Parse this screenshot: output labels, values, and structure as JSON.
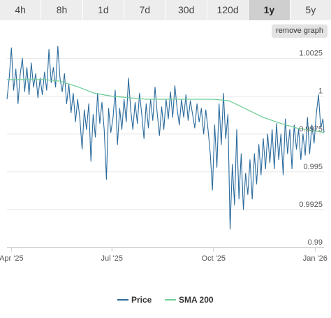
{
  "tabs": [
    {
      "label": "4h",
      "active": false
    },
    {
      "label": "8h",
      "active": false
    },
    {
      "label": "1d",
      "active": false
    },
    {
      "label": "7d",
      "active": false
    },
    {
      "label": "30d",
      "active": false
    },
    {
      "label": "120d",
      "active": false
    },
    {
      "label": "1y",
      "active": true
    },
    {
      "label": "5y",
      "active": false
    }
  ],
  "remove_graph_label": "remove graph",
  "colors": {
    "price": "#2a6a9c",
    "sma": "#6fcf97",
    "grid": "#e6e6e6",
    "axis": "#cccccc"
  },
  "chart_data": {
    "type": "line",
    "title": "",
    "xlabel": "",
    "ylabel": "",
    "xlim": [
      "2025-03-28",
      "2026-01-09"
    ],
    "ylim": [
      0.99,
      1.0035
    ],
    "y_ticks": [
      {
        "value": 1.0025,
        "label": "1.0025"
      },
      {
        "value": 1.0,
        "label": "1"
      },
      {
        "value": 0.9975,
        "label": "0.9975"
      },
      {
        "value": 0.995,
        "label": "0.995"
      },
      {
        "value": 0.9925,
        "label": "0.9925"
      },
      {
        "value": 0.99,
        "label": "0.99"
      }
    ],
    "x_ticks": [
      {
        "date": "2025-04-01",
        "label": "Apr '25"
      },
      {
        "date": "2025-07-01",
        "label": "Jul '25"
      },
      {
        "date": "2025-10-01",
        "label": "Oct '25"
      },
      {
        "date": "2026-01-01",
        "label": "Jan '26"
      }
    ],
    "grid": true,
    "legend_position": "bottom",
    "series": [
      {
        "name": "Price",
        "color": "#2a6a9c",
        "points": [
          [
            "2025-03-28",
            0.9998
          ],
          [
            "2025-03-30",
            1.0012
          ],
          [
            "2025-04-01",
            1.0032
          ],
          [
            "2025-04-03",
            1.0004
          ],
          [
            "2025-04-05",
            1.0018
          ],
          [
            "2025-04-07",
            0.9995
          ],
          [
            "2025-04-09",
            1.0015
          ],
          [
            "2025-04-11",
            1.0025
          ],
          [
            "2025-04-13",
            1.0003
          ],
          [
            "2025-04-15",
            1.0019
          ],
          [
            "2025-04-17",
            1.0001
          ],
          [
            "2025-04-19",
            1.0022
          ],
          [
            "2025-04-21",
            1.0006
          ],
          [
            "2025-04-23",
            1.0015
          ],
          [
            "2025-04-25",
            0.9999
          ],
          [
            "2025-04-27",
            1.0012
          ],
          [
            "2025-04-29",
            1.0001
          ],
          [
            "2025-05-01",
            1.0016
          ],
          [
            "2025-05-03",
            1.0004
          ],
          [
            "2025-05-05",
            1.0031
          ],
          [
            "2025-05-07",
            1.0009
          ],
          [
            "2025-05-09",
            1.0019
          ],
          [
            "2025-05-11",
            1.0006
          ],
          [
            "2025-05-13",
            1.0033
          ],
          [
            "2025-05-15",
            1.0012
          ],
          [
            "2025-05-17",
            1.0003
          ],
          [
            "2025-05-19",
            1.0015
          ],
          [
            "2025-05-21",
            0.9995
          ],
          [
            "2025-05-23",
            1.0008
          ],
          [
            "2025-05-25",
            0.9989
          ],
          [
            "2025-05-27",
            1.0002
          ],
          [
            "2025-05-29",
            0.9983
          ],
          [
            "2025-05-31",
            0.9998
          ],
          [
            "2025-06-02",
            0.9985
          ],
          [
            "2025-06-04",
            0.9965
          ],
          [
            "2025-06-06",
            0.9991
          ],
          [
            "2025-06-08",
            0.9978
          ],
          [
            "2025-06-10",
            0.9995
          ],
          [
            "2025-06-12",
            0.9957
          ],
          [
            "2025-06-14",
            0.9988
          ],
          [
            "2025-06-16",
            0.9973
          ],
          [
            "2025-06-18",
            1.0002
          ],
          [
            "2025-06-20",
            0.9982
          ],
          [
            "2025-06-22",
            0.9996
          ],
          [
            "2025-06-24",
            0.9978
          ],
          [
            "2025-06-26",
            0.9945
          ],
          [
            "2025-06-28",
            0.9992
          ],
          [
            "2025-06-30",
            0.9976
          ],
          [
            "2025-07-02",
            0.9986
          ],
          [
            "2025-07-04",
            1.0004
          ],
          [
            "2025-07-06",
            0.9968
          ],
          [
            "2025-07-08",
            0.9992
          ],
          [
            "2025-07-10",
            0.9978
          ],
          [
            "2025-07-12",
            0.9998
          ],
          [
            "2025-07-14",
            0.9983
          ],
          [
            "2025-07-16",
            1.0012
          ],
          [
            "2025-07-18",
            0.9991
          ],
          [
            "2025-07-20",
            0.9978
          ],
          [
            "2025-07-22",
            0.9996
          ],
          [
            "2025-07-24",
            0.9982
          ],
          [
            "2025-07-26",
            1.0002
          ],
          [
            "2025-07-28",
            0.9988
          ],
          [
            "2025-07-30",
            0.9972
          ],
          [
            "2025-08-01",
            0.9995
          ],
          [
            "2025-08-03",
            0.9979
          ],
          [
            "2025-08-05",
            0.9998
          ],
          [
            "2025-08-07",
            0.9984
          ],
          [
            "2025-08-09",
            1.0006
          ],
          [
            "2025-08-11",
            0.9989
          ],
          [
            "2025-08-13",
            0.9974
          ],
          [
            "2025-08-15",
            0.9993
          ],
          [
            "2025-08-17",
            0.9978
          ],
          [
            "2025-08-19",
            0.9998
          ],
          [
            "2025-08-21",
            0.9985
          ],
          [
            "2025-08-23",
            1.0003
          ],
          [
            "2025-08-25",
            0.9986
          ],
          [
            "2025-08-27",
            1.0007
          ],
          [
            "2025-08-29",
            0.9992
          ],
          [
            "2025-08-31",
            0.9981
          ],
          [
            "2025-09-02",
            0.9998
          ],
          [
            "2025-09-04",
            0.9986
          ],
          [
            "2025-09-06",
            1.0001
          ],
          [
            "2025-09-08",
            0.9984
          ],
          [
            "2025-09-10",
            0.9997
          ],
          [
            "2025-09-12",
            0.9988
          ],
          [
            "2025-09-14",
            0.9979
          ],
          [
            "2025-09-16",
            0.9995
          ],
          [
            "2025-09-18",
            0.9983
          ],
          [
            "2025-09-20",
            0.9992
          ],
          [
            "2025-09-22",
            0.9975
          ],
          [
            "2025-09-24",
            0.9991
          ],
          [
            "2025-09-26",
            0.9978
          ],
          [
            "2025-09-28",
            0.9962
          ],
          [
            "2025-09-30",
            0.9938
          ],
          [
            "2025-10-02",
            0.9981
          ],
          [
            "2025-10-04",
            0.9953
          ],
          [
            "2025-10-06",
            0.9995
          ],
          [
            "2025-10-08",
            0.9968
          ],
          [
            "2025-10-10",
            1.0002
          ],
          [
            "2025-10-12",
            0.9972
          ],
          [
            "2025-10-14",
            0.9988
          ],
          [
            "2025-10-16",
            0.9912
          ],
          [
            "2025-10-18",
            0.9955
          ],
          [
            "2025-10-20",
            0.9928
          ],
          [
            "2025-10-22",
            0.9978
          ],
          [
            "2025-10-24",
            0.9932
          ],
          [
            "2025-10-26",
            0.9962
          ],
          [
            "2025-10-28",
            0.9925
          ],
          [
            "2025-10-30",
            0.9949
          ],
          [
            "2025-11-01",
            0.9935
          ],
          [
            "2025-11-03",
            0.9958
          ],
          [
            "2025-11-05",
            0.9932
          ],
          [
            "2025-11-07",
            0.9962
          ],
          [
            "2025-11-09",
            0.9942
          ],
          [
            "2025-11-11",
            0.9968
          ],
          [
            "2025-11-13",
            0.9948
          ],
          [
            "2025-11-15",
            0.9972
          ],
          [
            "2025-11-17",
            0.9952
          ],
          [
            "2025-11-19",
            0.9975
          ],
          [
            "2025-11-21",
            0.9956
          ],
          [
            "2025-11-23",
            0.9978
          ],
          [
            "2025-11-25",
            0.9952
          ],
          [
            "2025-11-27",
            0.9982
          ],
          [
            "2025-11-29",
            0.9958
          ],
          [
            "2025-12-01",
            0.9975
          ],
          [
            "2025-12-03",
            0.9948
          ],
          [
            "2025-12-05",
            0.9985
          ],
          [
            "2025-12-07",
            0.9962
          ],
          [
            "2025-12-09",
            0.9978
          ],
          [
            "2025-12-11",
            0.9952
          ],
          [
            "2025-12-13",
            0.9981
          ],
          [
            "2025-12-15",
            0.9965
          ],
          [
            "2025-12-17",
            0.9978
          ],
          [
            "2025-12-19",
            0.9958
          ],
          [
            "2025-12-21",
            0.9975
          ],
          [
            "2025-12-23",
            0.9961
          ],
          [
            "2025-12-25",
            0.9986
          ],
          [
            "2025-12-27",
            0.9962
          ],
          [
            "2025-12-29",
            0.9981
          ],
          [
            "2025-12-31",
            0.9969
          ],
          [
            "2026-01-02",
            0.9988
          ],
          [
            "2026-01-04",
            1.0001
          ],
          [
            "2026-01-06",
            0.9979
          ],
          [
            "2026-01-08",
            0.9985
          ],
          [
            "2026-01-09",
            0.9976
          ]
        ]
      },
      {
        "name": "SMA 200",
        "color": "#6fcf97",
        "points": [
          [
            "2025-03-28",
            1.0011
          ],
          [
            "2025-04-15",
            1.0011
          ],
          [
            "2025-05-01",
            1.0011
          ],
          [
            "2025-05-15",
            1.001
          ],
          [
            "2025-06-01",
            1.0006
          ],
          [
            "2025-06-15",
            1.0002
          ],
          [
            "2025-07-01",
            1.0
          ],
          [
            "2025-08-01",
            0.9998
          ],
          [
            "2025-09-01",
            0.9998
          ],
          [
            "2025-10-01",
            0.9998
          ],
          [
            "2025-10-15",
            0.9997
          ],
          [
            "2025-11-01",
            0.9991
          ],
          [
            "2025-11-15",
            0.9986
          ],
          [
            "2025-12-01",
            0.9982
          ],
          [
            "2025-12-15",
            0.9979
          ],
          [
            "2026-01-01",
            0.9977
          ],
          [
            "2026-01-09",
            0.9976
          ]
        ]
      }
    ]
  }
}
